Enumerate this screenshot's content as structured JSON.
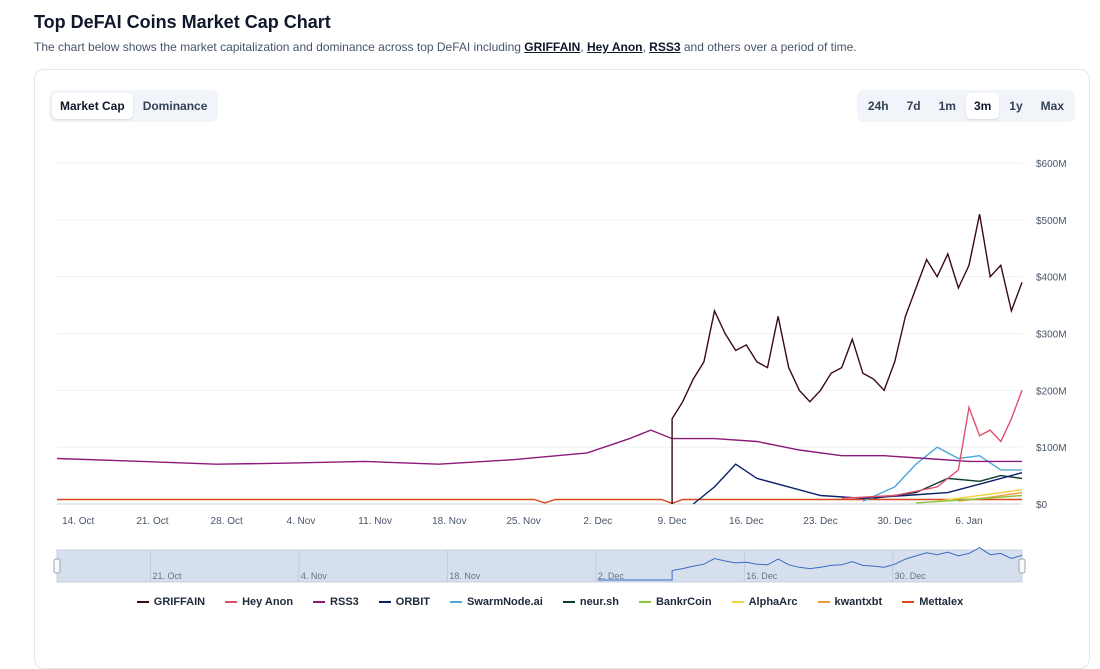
{
  "header": {
    "title": "Top DeFAI Coins Market Cap Chart",
    "subtitle_pre": "The chart below shows the market capitalization and dominance across top DeFAI including ",
    "link1": "GRIFFAIN",
    "sep1": ", ",
    "link2": "Hey Anon",
    "sep2": ", ",
    "link3": "RSS3",
    "subtitle_post": " and others over a period of time."
  },
  "view_tabs": [
    {
      "label": "Market Cap",
      "active": true
    },
    {
      "label": "Dominance",
      "active": false
    }
  ],
  "range_tabs": [
    {
      "label": "24h"
    },
    {
      "label": "7d"
    },
    {
      "label": "1m"
    },
    {
      "label": "3m",
      "active": true
    },
    {
      "label": "1y"
    },
    {
      "label": "Max"
    }
  ],
  "chart_data": {
    "type": "line",
    "xrange": [
      "2024-10-12",
      "2025-01-11"
    ],
    "ylim": [
      0,
      600
    ],
    "yticks": [
      {
        "v": 0,
        "label": "$0"
      },
      {
        "v": 100,
        "label": "$100M"
      },
      {
        "v": 200,
        "label": "$200M"
      },
      {
        "v": 300,
        "label": "$300M"
      },
      {
        "v": 400,
        "label": "$400M"
      },
      {
        "v": 500,
        "label": "$500M"
      },
      {
        "v": 600,
        "label": "$600M"
      }
    ],
    "xticks": [
      {
        "d": "2024-10-14",
        "label": "14. Oct"
      },
      {
        "d": "2024-10-21",
        "label": "21. Oct"
      },
      {
        "d": "2024-10-28",
        "label": "28. Oct"
      },
      {
        "d": "2024-11-04",
        "label": "4. Nov"
      },
      {
        "d": "2024-11-11",
        "label": "11. Nov"
      },
      {
        "d": "2024-11-18",
        "label": "18. Nov"
      },
      {
        "d": "2024-11-25",
        "label": "25. Nov"
      },
      {
        "d": "2024-12-02",
        "label": "2. Dec"
      },
      {
        "d": "2024-12-09",
        "label": "9. Dec"
      },
      {
        "d": "2024-12-16",
        "label": "16. Dec"
      },
      {
        "d": "2024-12-23",
        "label": "23. Dec"
      },
      {
        "d": "2024-12-30",
        "label": "30. Dec"
      },
      {
        "d": "2025-01-06",
        "label": "6. Jan"
      }
    ],
    "navigator_ticks": [
      {
        "d": "2024-10-21",
        "label": "21. Oct"
      },
      {
        "d": "2024-11-04",
        "label": "4. Nov"
      },
      {
        "d": "2024-11-18",
        "label": "18. Nov"
      },
      {
        "d": "2024-12-02",
        "label": "2. Dec"
      },
      {
        "d": "2024-12-16",
        "label": "16. Dec"
      },
      {
        "d": "2024-12-30",
        "label": "30. Dec"
      }
    ],
    "grid": true,
    "legend_position": "bottom",
    "series": [
      {
        "name": "GRIFFAIN",
        "color": "#3b0a14",
        "points": [
          [
            "2024-12-09",
            0
          ],
          [
            "2024-12-09",
            150
          ],
          [
            "2024-12-10",
            180
          ],
          [
            "2024-12-11",
            220
          ],
          [
            "2024-12-12",
            250
          ],
          [
            "2024-12-13",
            340
          ],
          [
            "2024-12-14",
            300
          ],
          [
            "2024-12-15",
            270
          ],
          [
            "2024-12-16",
            280
          ],
          [
            "2024-12-17",
            250
          ],
          [
            "2024-12-18",
            240
          ],
          [
            "2024-12-19",
            330
          ],
          [
            "2024-12-20",
            240
          ],
          [
            "2024-12-21",
            200
          ],
          [
            "2024-12-22",
            180
          ],
          [
            "2024-12-23",
            200
          ],
          [
            "2024-12-24",
            230
          ],
          [
            "2024-12-25",
            240
          ],
          [
            "2024-12-26",
            290
          ],
          [
            "2024-12-27",
            230
          ],
          [
            "2024-12-28",
            220
          ],
          [
            "2024-12-29",
            200
          ],
          [
            "2024-12-30",
            250
          ],
          [
            "2024-12-31",
            330
          ],
          [
            "2025-01-01",
            380
          ],
          [
            "2025-01-02",
            430
          ],
          [
            "2025-01-03",
            400
          ],
          [
            "2025-01-04",
            440
          ],
          [
            "2025-01-05",
            380
          ],
          [
            "2025-01-06",
            420
          ],
          [
            "2025-01-07",
            510
          ],
          [
            "2025-01-08",
            400
          ],
          [
            "2025-01-09",
            420
          ],
          [
            "2025-01-10",
            340
          ],
          [
            "2025-01-11",
            390
          ]
        ]
      },
      {
        "name": "Hey Anon",
        "color": "#e0506e",
        "points": [
          [
            "2024-12-25",
            10
          ],
          [
            "2024-12-30",
            15
          ],
          [
            "2025-01-03",
            30
          ],
          [
            "2025-01-05",
            60
          ],
          [
            "2025-01-06",
            170
          ],
          [
            "2025-01-07",
            120
          ],
          [
            "2025-01-08",
            130
          ],
          [
            "2025-01-09",
            110
          ],
          [
            "2025-01-10",
            150
          ],
          [
            "2025-01-11",
            200
          ]
        ]
      },
      {
        "name": "RSS3",
        "color": "#8b1a7a",
        "points": [
          [
            "2024-10-12",
            80
          ],
          [
            "2024-10-20",
            75
          ],
          [
            "2024-10-27",
            70
          ],
          [
            "2024-11-03",
            72
          ],
          [
            "2024-11-10",
            75
          ],
          [
            "2024-11-17",
            70
          ],
          [
            "2024-11-24",
            78
          ],
          [
            "2024-12-01",
            90
          ],
          [
            "2024-12-05",
            115
          ],
          [
            "2024-12-07",
            130
          ],
          [
            "2024-12-09",
            115
          ],
          [
            "2024-12-13",
            115
          ],
          [
            "2024-12-17",
            110
          ],
          [
            "2024-12-21",
            95
          ],
          [
            "2024-12-25",
            85
          ],
          [
            "2024-12-29",
            85
          ],
          [
            "2025-01-02",
            80
          ],
          [
            "2025-01-06",
            75
          ],
          [
            "2025-01-11",
            75
          ]
        ]
      },
      {
        "name": "ORBIT",
        "color": "#0b1f6b",
        "points": [
          [
            "2024-12-11",
            0
          ],
          [
            "2024-12-13",
            30
          ],
          [
            "2024-12-15",
            70
          ],
          [
            "2024-12-17",
            45
          ],
          [
            "2024-12-20",
            30
          ],
          [
            "2024-12-23",
            15
          ],
          [
            "2024-12-27",
            10
          ],
          [
            "2024-12-31",
            15
          ],
          [
            "2025-01-04",
            20
          ],
          [
            "2025-01-08",
            40
          ],
          [
            "2025-01-11",
            55
          ]
        ]
      },
      {
        "name": "SwarmNode.ai",
        "color": "#4aa8d8",
        "points": [
          [
            "2024-12-27",
            5
          ],
          [
            "2024-12-30",
            30
          ],
          [
            "2025-01-01",
            70
          ],
          [
            "2025-01-03",
            100
          ],
          [
            "2025-01-05",
            80
          ],
          [
            "2025-01-07",
            85
          ],
          [
            "2025-01-09",
            60
          ],
          [
            "2025-01-11",
            60
          ]
        ]
      },
      {
        "name": "neur.sh",
        "color": "#0d3b2e",
        "points": [
          [
            "2024-12-28",
            10
          ],
          [
            "2025-01-01",
            20
          ],
          [
            "2025-01-04",
            45
          ],
          [
            "2025-01-07",
            40
          ],
          [
            "2025-01-09",
            50
          ],
          [
            "2025-01-11",
            45
          ]
        ]
      },
      {
        "name": "BankrCoin",
        "color": "#8cc63f",
        "points": [
          [
            "2025-01-01",
            2
          ],
          [
            "2025-01-06",
            8
          ],
          [
            "2025-01-11",
            15
          ]
        ]
      },
      {
        "name": "AlphaArc",
        "color": "#f2d43a",
        "points": [
          [
            "2025-01-03",
            5
          ],
          [
            "2025-01-07",
            15
          ],
          [
            "2025-01-11",
            25
          ]
        ]
      },
      {
        "name": "kwantxbt",
        "color": "#f39b3b",
        "points": [
          [
            "2025-01-05",
            5
          ],
          [
            "2025-01-08",
            12
          ],
          [
            "2025-01-11",
            20
          ]
        ]
      },
      {
        "name": "Mettalex",
        "color": "#d9481c",
        "points": [
          [
            "2024-10-12",
            8
          ],
          [
            "2024-11-26",
            8
          ],
          [
            "2024-11-27",
            2
          ],
          [
            "2024-11-28",
            8
          ],
          [
            "2024-12-08",
            8
          ],
          [
            "2024-12-09",
            1
          ],
          [
            "2024-12-10",
            8
          ],
          [
            "2025-01-11",
            8
          ]
        ]
      }
    ]
  }
}
